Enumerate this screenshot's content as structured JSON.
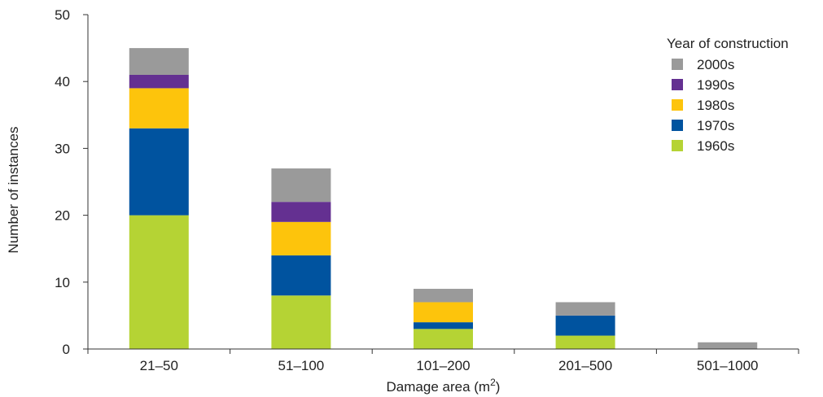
{
  "chart_data": {
    "type": "bar",
    "stacked": true,
    "categories": [
      "21–50",
      "51–100",
      "101–200",
      "201–500",
      "501–1000"
    ],
    "series": [
      {
        "name": "1960s",
        "color": "#b5d334",
        "values": [
          20,
          8,
          3,
          2,
          0
        ]
      },
      {
        "name": "1970s",
        "color": "#00539f",
        "values": [
          13,
          6,
          1,
          3,
          0
        ]
      },
      {
        "name": "1980s",
        "color": "#fdc40c",
        "values": [
          6,
          5,
          3,
          0,
          0
        ]
      },
      {
        "name": "1990s",
        "color": "#643091",
        "values": [
          2,
          3,
          0,
          0,
          0
        ]
      },
      {
        "name": "2000s",
        "color": "#9a9a9a",
        "values": [
          4,
          5,
          2,
          2,
          1
        ]
      }
    ],
    "xlabel": "Damage area (m",
    "xlabel_sup": "2",
    "xlabel_end": ")",
    "ylabel": "Number of instances",
    "ylim": [
      0,
      50
    ],
    "yticks": [
      0,
      10,
      20,
      30,
      40,
      50
    ],
    "legend_title": "Year of construction",
    "legend_order": [
      "2000s",
      "1990s",
      "1980s",
      "1970s",
      "1960s"
    ],
    "legend_position": "top-right",
    "grid": false
  }
}
